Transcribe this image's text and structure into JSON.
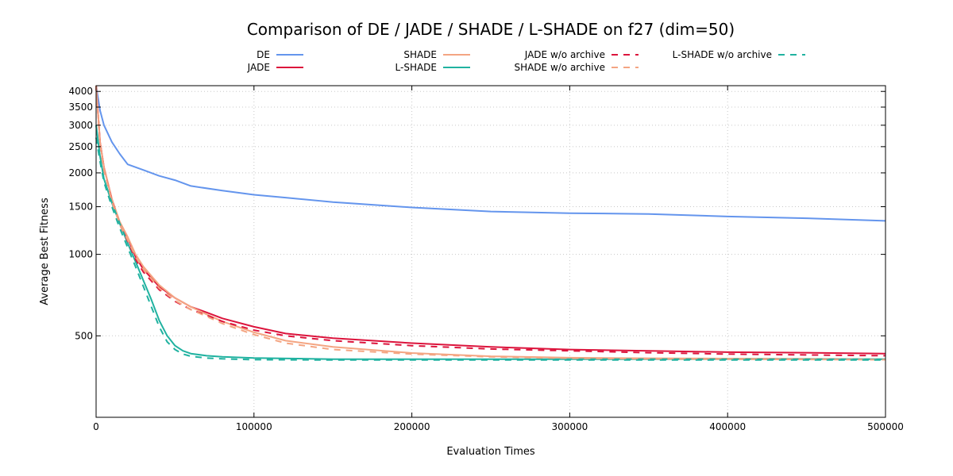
{
  "chart_data": {
    "type": "line",
    "title": "Comparison of DE / JADE / SHADE / L-SHADE on f27 (dim=50)",
    "xlabel": "Evaluation Times",
    "ylabel": "Average Best Fitness",
    "xlim": [
      0,
      500000
    ],
    "ylim": [
      250,
      4200
    ],
    "yscale": "log",
    "grid": true,
    "legend_position": "top",
    "xticks": [
      0,
      100000,
      200000,
      300000,
      400000,
      500000
    ],
    "xtick_labels": [
      "0",
      "100000",
      "200000",
      "300000",
      "400000",
      "500000"
    ],
    "yticks": [
      500,
      1000,
      1500,
      2000,
      2500,
      3000,
      3500,
      4000
    ],
    "ytick_labels": [
      "500",
      "1000",
      "1500",
      "2000",
      "2500",
      "3000",
      "3500",
      "4000"
    ],
    "series": [
      {
        "name": "DE",
        "color": "#6495ed",
        "dash": "solid",
        "x": [
          0,
          2500,
          5000,
          10000,
          15000,
          20000,
          30000,
          40000,
          50000,
          60000,
          80000,
          100000,
          120000,
          150000,
          200000,
          250000,
          300000,
          350000,
          400000,
          450000,
          500000
        ],
        "y": [
          4200,
          3400,
          3000,
          2600,
          2350,
          2150,
          2050,
          1950,
          1880,
          1790,
          1720,
          1660,
          1620,
          1560,
          1490,
          1440,
          1420,
          1410,
          1380,
          1360,
          1330
        ]
      },
      {
        "name": "JADE",
        "color": "#dc143c",
        "dash": "solid",
        "x": [
          0,
          2500,
          5000,
          10000,
          15000,
          20000,
          25000,
          30000,
          40000,
          50000,
          60000,
          70000,
          80000,
          100000,
          120000,
          150000,
          200000,
          250000,
          300000,
          350000,
          400000,
          450000,
          500000
        ],
        "y": [
          4200,
          2600,
          2100,
          1600,
          1300,
          1150,
          980,
          880,
          760,
          690,
          640,
          610,
          580,
          540,
          510,
          490,
          470,
          455,
          445,
          440,
          435,
          433,
          430
        ]
      },
      {
        "name": "SHADE",
        "color": "#f4a582",
        "dash": "solid",
        "x": [
          0,
          2500,
          5000,
          10000,
          15000,
          20000,
          25000,
          30000,
          40000,
          50000,
          60000,
          70000,
          80000,
          100000,
          120000,
          150000,
          200000,
          250000,
          300000,
          350000,
          400000,
          450000,
          500000
        ],
        "y": [
          4200,
          2600,
          2100,
          1600,
          1320,
          1160,
          1000,
          900,
          770,
          690,
          640,
          600,
          565,
          515,
          480,
          455,
          432,
          420,
          415,
          413,
          412,
          411,
          410
        ]
      },
      {
        "name": "L-SHADE",
        "color": "#20b2a0",
        "dash": "solid",
        "x": [
          0,
          2500,
          5000,
          10000,
          15000,
          20000,
          25000,
          30000,
          35000,
          40000,
          45000,
          50000,
          55000,
          60000,
          70000,
          80000,
          100000,
          150000,
          200000,
          300000,
          400000,
          500000
        ],
        "y": [
          3000,
          2300,
          1900,
          1550,
          1300,
          1100,
          940,
          800,
          680,
          570,
          500,
          460,
          440,
          430,
          422,
          418,
          414,
          410,
          410,
          410,
          410,
          410
        ]
      },
      {
        "name": "JADE w/o archive",
        "color": "#dc143c",
        "dash": "dash",
        "x": [
          0,
          2500,
          5000,
          10000,
          15000,
          20000,
          25000,
          30000,
          40000,
          50000,
          60000,
          70000,
          80000,
          100000,
          120000,
          150000,
          200000,
          250000,
          300000,
          350000,
          400000,
          450000,
          500000
        ],
        "y": [
          4200,
          2550,
          2050,
          1580,
          1290,
          1120,
          960,
          860,
          740,
          670,
          625,
          595,
          565,
          525,
          500,
          480,
          460,
          447,
          440,
          433,
          428,
          425,
          422
        ]
      },
      {
        "name": "SHADE w/o archive",
        "color": "#f4a582",
        "dash": "dash",
        "x": [
          0,
          2500,
          5000,
          10000,
          15000,
          20000,
          25000,
          30000,
          40000,
          50000,
          60000,
          70000,
          80000,
          100000,
          120000,
          150000,
          200000,
          250000,
          300000,
          350000,
          400000,
          450000,
          500000
        ],
        "y": [
          4200,
          2550,
          2050,
          1570,
          1290,
          1130,
          980,
          880,
          750,
          675,
          625,
          590,
          555,
          505,
          470,
          445,
          428,
          418,
          413,
          411,
          410,
          409,
          408
        ]
      },
      {
        "name": "L-SHADE w/o archive",
        "color": "#20b2a0",
        "dash": "dash",
        "x": [
          0,
          2500,
          5000,
          10000,
          15000,
          20000,
          25000,
          30000,
          35000,
          40000,
          45000,
          50000,
          55000,
          60000,
          70000,
          80000,
          100000,
          150000,
          200000,
          300000,
          400000,
          500000
        ],
        "y": [
          2700,
          2200,
          1850,
          1500,
          1250,
          1060,
          900,
          760,
          640,
          540,
          475,
          445,
          428,
          420,
          414,
          411,
          408,
          407,
          407,
          407,
          407,
          407
        ]
      }
    ]
  }
}
